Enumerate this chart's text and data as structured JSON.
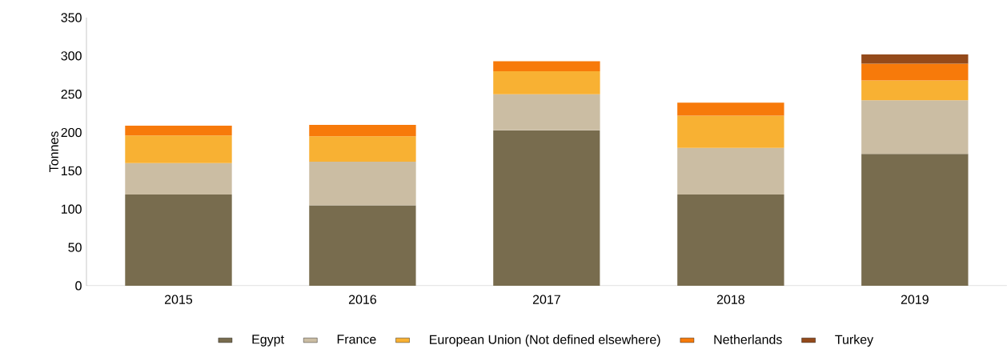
{
  "chart_data": {
    "type": "bar",
    "stacked": true,
    "ylabel": "Tonnes",
    "categories": [
      "2015",
      "2016",
      "2017",
      "2018",
      "2019"
    ],
    "ylim": [
      0,
      350
    ],
    "yticks": [
      0,
      50,
      100,
      150,
      200,
      250,
      300,
      350
    ],
    "legend": "bottom",
    "grid": false,
    "series": [
      {
        "name": "Egypt",
        "color": "#786c4e",
        "values": [
          119,
          105,
          203,
          119,
          172
        ]
      },
      {
        "name": "France",
        "color": "#cbbda3",
        "values": [
          41,
          57,
          47,
          61,
          70
        ]
      },
      {
        "name": "European Union (Not defined elsewhere)",
        "color": "#f8b133",
        "values": [
          36,
          33,
          30,
          42,
          26
        ]
      },
      {
        "name": "Netherlands",
        "color": "#f77a0a",
        "values": [
          13,
          15,
          13,
          17,
          22
        ]
      },
      {
        "name": "Turkey",
        "color": "#944a1a",
        "values": [
          null,
          null,
          null,
          null,
          12
        ]
      }
    ]
  }
}
